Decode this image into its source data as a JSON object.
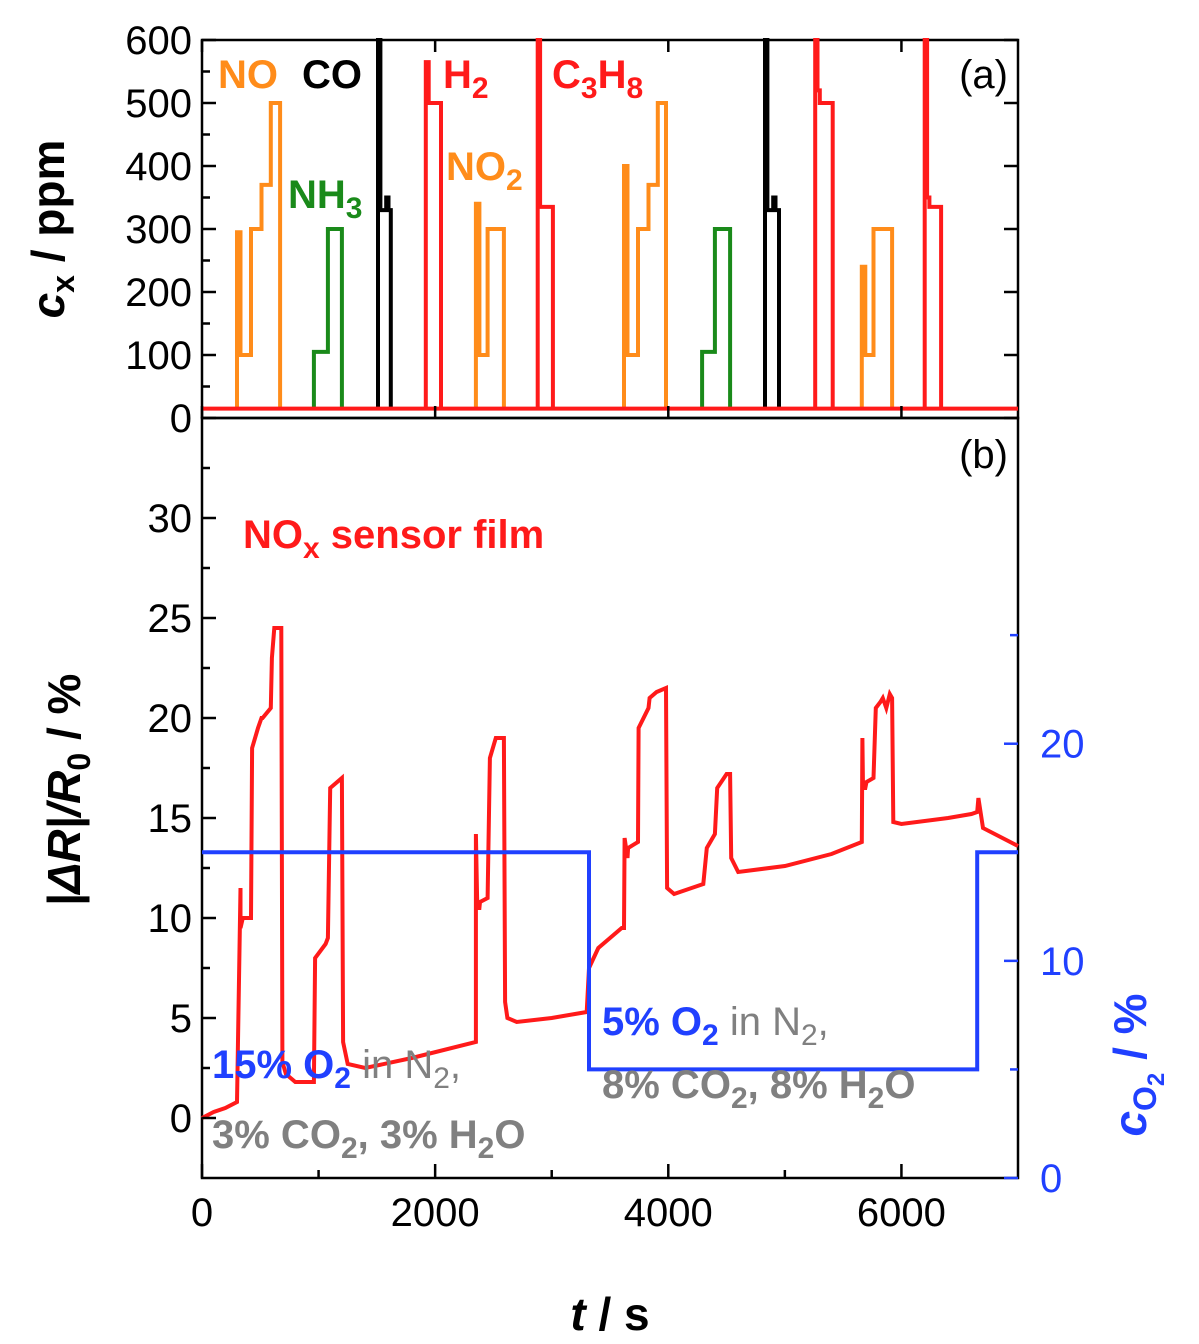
{
  "chart_data": [
    {
      "panel_label": "(a)",
      "type": "line",
      "xlim": [
        0,
        7000
      ],
      "ylim": [
        0,
        600
      ],
      "yticks": [
        0,
        100,
        200,
        300,
        400,
        500,
        600
      ],
      "ylabel_main": "c",
      "ylabel_sub": "x",
      "ylabel_unit": " / ppm",
      "annotations": {
        "no": "NO",
        "co": "CO",
        "nh3_main": "NH",
        "nh3_sub": "3",
        "h2_main": "H",
        "h2_sub": "2",
        "no2_main": "NO",
        "no2_sub": "2",
        "c3h8_c": "C",
        "c3h8_3": "3",
        "c3h8_h": "H",
        "c3h8_8": "8"
      },
      "series": [
        {
          "gas": "NO",
          "color": "#ff8c1a",
          "x": [
            300,
            300,
            330,
            330,
            420,
            420,
            510,
            510,
            590,
            590,
            670,
            670
          ],
          "y": [
            15,
            295,
            295,
            100,
            100,
            300,
            300,
            370,
            370,
            500,
            500,
            15
          ]
        },
        {
          "gas": "NO2",
          "color": "#ff8c1a",
          "x": [
            2350,
            2350,
            2380,
            2380,
            2450,
            2450,
            2530,
            2530,
            2590,
            2590
          ],
          "y": [
            15,
            340,
            340,
            100,
            100,
            300,
            300,
            300,
            300,
            15
          ]
        },
        {
          "gas": "NO",
          "color": "#ff8c1a",
          "x": [
            3620,
            3620,
            3650,
            3650,
            3740,
            3740,
            3830,
            3830,
            3910,
            3910,
            3980,
            3980
          ],
          "y": [
            15,
            400,
            400,
            100,
            100,
            300,
            300,
            370,
            370,
            500,
            500,
            15
          ]
        },
        {
          "gas": "NO2",
          "color": "#ff8c1a",
          "x": [
            5660,
            5660,
            5690,
            5690,
            5760,
            5760,
            5840,
            5840,
            5920,
            5920
          ],
          "y": [
            15,
            240,
            240,
            100,
            100,
            300,
            300,
            300,
            300,
            15
          ]
        },
        {
          "gas": "NH3",
          "color": "#1a8a1a",
          "x": [
            960,
            960,
            1010,
            1010,
            1080,
            1080,
            1200,
            1200
          ],
          "y": [
            15,
            105,
            105,
            105,
            105,
            300,
            300,
            15
          ]
        },
        {
          "gas": "NH3",
          "color": "#1a8a1a",
          "x": [
            4290,
            4290,
            4330,
            4330,
            4400,
            4400,
            4530,
            4530
          ],
          "y": [
            15,
            105,
            105,
            105,
            105,
            300,
            300,
            15
          ]
        },
        {
          "gas": "CO",
          "color": "#000000",
          "x": [
            1510,
            1510,
            1530,
            1530,
            1580,
            1580,
            1600,
            1600,
            1620,
            1620
          ],
          "y": [
            15,
            600,
            600,
            330,
            330,
            350,
            350,
            330,
            330,
            15
          ]
        },
        {
          "gas": "CO",
          "color": "#000000",
          "x": [
            4830,
            4830,
            4850,
            4850,
            4900,
            4900,
            4920,
            4920,
            4950,
            4950
          ],
          "y": [
            15,
            600,
            600,
            330,
            330,
            350,
            350,
            330,
            330,
            15
          ]
        },
        {
          "gas": "H2",
          "color": "#ff1a1a",
          "x": [
            1920,
            1920,
            1945,
            1945,
            1960,
            1960,
            2050,
            2050
          ],
          "y": [
            15,
            565,
            565,
            500,
            500,
            500,
            500,
            15
          ]
        },
        {
          "gas": "H2",
          "color": "#ff1a1a",
          "x": [
            5260,
            5260,
            5280,
            5280,
            5300,
            5300,
            5410,
            5410
          ],
          "y": [
            15,
            600,
            600,
            520,
            520,
            500,
            500,
            15
          ]
        },
        {
          "gas": "C3H8",
          "color": "#ff1a1a",
          "x": [
            2880,
            2880,
            2900,
            2900,
            3010,
            3010
          ],
          "y": [
            15,
            600,
            600,
            335,
            335,
            15
          ]
        },
        {
          "gas": "C3H8",
          "color": "#ff1a1a",
          "x": [
            6200,
            6200,
            6220,
            6220,
            6240,
            6240,
            6340,
            6340
          ],
          "y": [
            15,
            600,
            600,
            350,
            350,
            335,
            335,
            15
          ]
        },
        {
          "gas": "baseline",
          "color": "#ff1a1a",
          "x": [
            0,
            7000
          ],
          "y": [
            15,
            15
          ]
        }
      ]
    },
    {
      "panel_label": "(b)",
      "type": "line",
      "xlim": [
        0,
        7000
      ],
      "ylim": [
        -3,
        35
      ],
      "yticks": [
        0,
        5,
        10,
        15,
        20,
        25,
        30
      ],
      "xticks": [
        0,
        2000,
        4000,
        6000
      ],
      "xlabel_main": "t",
      "xlabel_unit": " / s",
      "ylabel_left": "|ΔR|/R",
      "ylabel_left_sub": "0",
      "ylabel_left_unit": " / %",
      "y2lim": [
        0,
        35
      ],
      "y2ticks": [
        0,
        10,
        20
      ],
      "ylabel_right_main": "c",
      "ylabel_right_sub": "O",
      "ylabel_right_subsub": "2",
      "ylabel_right_unit": " / %",
      "sensor_label_main": "NO",
      "sensor_label_sub": "x",
      "sensor_label_rest": " sensor film",
      "cond1": {
        "pct": "15% O",
        "sub": "2",
        "rest": " in N",
        "rest_sub": "2",
        "comma": ",",
        "line2_a": "3% CO",
        "line2_sub1": "2",
        "line2_b": ", 3% H",
        "line2_sub2": "2",
        "line2_c": "O"
      },
      "cond2": {
        "pct": "5% O",
        "sub": "2",
        "rest": " in N",
        "rest_sub": "2",
        "comma": ",",
        "line2_a": "8% CO",
        "line2_sub1": "2",
        "line2_b": ", 8% H",
        "line2_sub2": "2",
        "line2_c": "O"
      },
      "series": [
        {
          "name": "NOx sensor film",
          "axis": "left",
          "color": "#ff1a1a",
          "x": [
            0,
            100,
            200,
            300,
            330,
            330,
            350,
            420,
            430,
            480,
            510,
            520,
            590,
            600,
            620,
            680,
            690,
            720,
            800,
            900,
            960,
            970,
            1060,
            1080,
            1100,
            1200,
            1210,
            1250,
            1400,
            1800,
            2350,
            2350,
            2360,
            2365,
            2380,
            2385,
            2450,
            2470,
            2520,
            2590,
            2600,
            2620,
            2700,
            3000,
            3200,
            3300,
            3320,
            3400,
            3500,
            3600,
            3620,
            3625,
            3650,
            3655,
            3740,
            3745,
            3830,
            3840,
            3900,
            3980,
            3990,
            4050,
            4200,
            4300,
            4330,
            4400,
            4420,
            4500,
            4530,
            4540,
            4600,
            5000,
            5400,
            5660,
            5665,
            5670,
            5690,
            5700,
            5760,
            5780,
            5820,
            5840,
            5870,
            5900,
            5920,
            5930,
            6000,
            6400,
            6600,
            6650,
            6660,
            6700,
            7000
          ],
          "y": [
            0,
            0.3,
            0.5,
            0.8,
            11.5,
            9.5,
            10,
            10,
            18.5,
            19.5,
            20,
            20,
            20.5,
            23,
            24.5,
            24.5,
            2.8,
            2.2,
            1.8,
            1.8,
            1.8,
            8,
            8.7,
            9,
            16.5,
            17,
            3.8,
            2.7,
            2.5,
            3,
            3.8,
            14.2,
            11,
            10.5,
            10.5,
            10.8,
            11,
            18,
            19,
            19,
            5.8,
            5,
            4.8,
            5,
            5.2,
            5.3,
            7.5,
            8.5,
            9,
            9.5,
            9.5,
            14,
            13,
            13.5,
            13.8,
            19.5,
            20.5,
            21,
            21.3,
            21.5,
            11.5,
            11.2,
            11.5,
            11.7,
            13.5,
            14.2,
            16.5,
            17.2,
            17.2,
            13,
            12.3,
            12.6,
            13.2,
            13.8,
            19,
            16.5,
            16.5,
            16.8,
            17,
            20.5,
            20.8,
            21,
            20.5,
            21.2,
            21,
            14.8,
            14.7,
            15,
            15.2,
            15.3,
            16,
            14.5,
            13.6
          ]
        },
        {
          "name": "O2",
          "axis": "right",
          "color": "#2040ff",
          "x": [
            0,
            3320,
            3320,
            6650,
            6650,
            7000
          ],
          "y": [
            15,
            15,
            5,
            5,
            15,
            15
          ]
        }
      ]
    }
  ]
}
